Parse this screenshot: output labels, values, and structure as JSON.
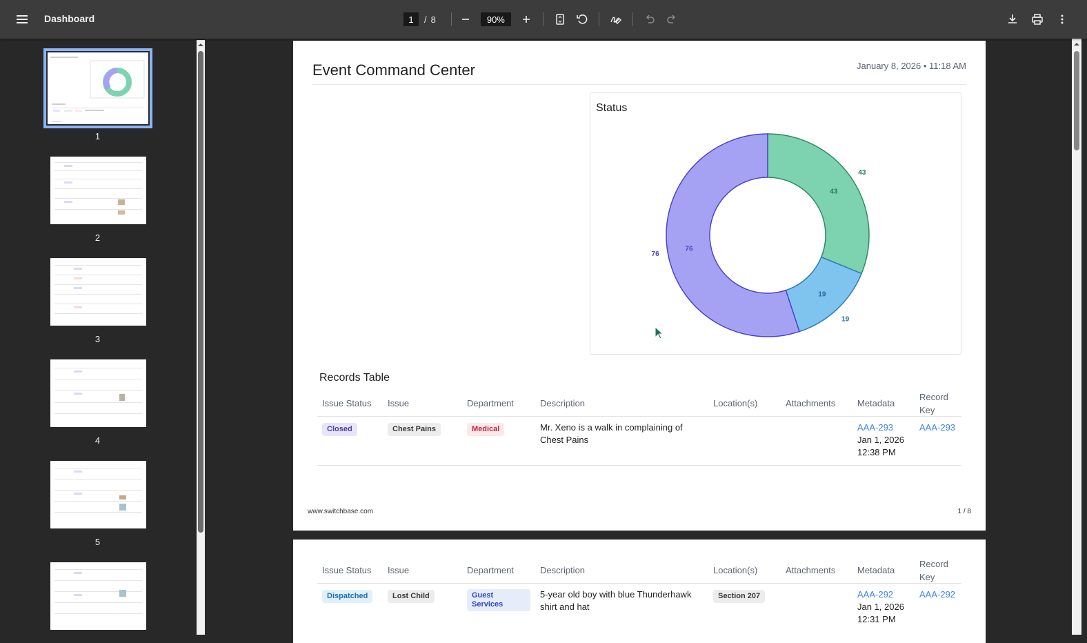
{
  "toolbar": {
    "title": "Dashboard",
    "current_page": "1",
    "page_separator": "/",
    "total_pages": "8",
    "zoom": "90%"
  },
  "thumbnails": [
    {
      "label": "1"
    },
    {
      "label": "2"
    },
    {
      "label": "3"
    },
    {
      "label": "4"
    },
    {
      "label": "5"
    }
  ],
  "report": {
    "title": "Event Command Center",
    "datetime": "January 8, 2026 • 11:18 AM",
    "footer_site": "www.switchbase.com",
    "footer_page": "1 / 8"
  },
  "chart_data": {
    "type": "pie",
    "title": "Status",
    "donut": true,
    "categories": [
      "Green segment",
      "Blue segment",
      "Purple segment"
    ],
    "values": [
      43,
      19,
      76
    ],
    "colors": [
      "#7dd3b0",
      "#7ec4ee",
      "#a6a2f3"
    ],
    "stroke_colors": [
      "#2f8a64",
      "#2c79b8",
      "#4b44c8"
    ],
    "label_colors": [
      "#237a55",
      "#1f6aa6",
      "#4b44c8"
    ]
  },
  "records": {
    "title": "Records Table",
    "columns": [
      "Issue Status",
      "Issue",
      "Department",
      "Description",
      "Location(s)",
      "Attachments",
      "Metadata",
      "Record Key"
    ],
    "rows": [
      {
        "status": "Closed",
        "issue": "Chest Pains",
        "department": "Medical",
        "description": " Mr. Xeno is a walk in complaining of Chest Pains",
        "location": "",
        "meta_link": "AAA-293",
        "meta_date": "Jan 1, 2026",
        "meta_time": "12:38 PM",
        "record_key": "AAA-293"
      },
      {
        "status": "Dispatched",
        "issue": "Lost Child",
        "department": "Guest Services",
        "description": "5-year old boy with blue Thunderhawk shirt and hat",
        "location": "Section 207",
        "meta_link": "AAA-292",
        "meta_date": "Jan 1, 2026",
        "meta_time": "12:31 PM",
        "record_key": "AAA-292"
      }
    ]
  }
}
